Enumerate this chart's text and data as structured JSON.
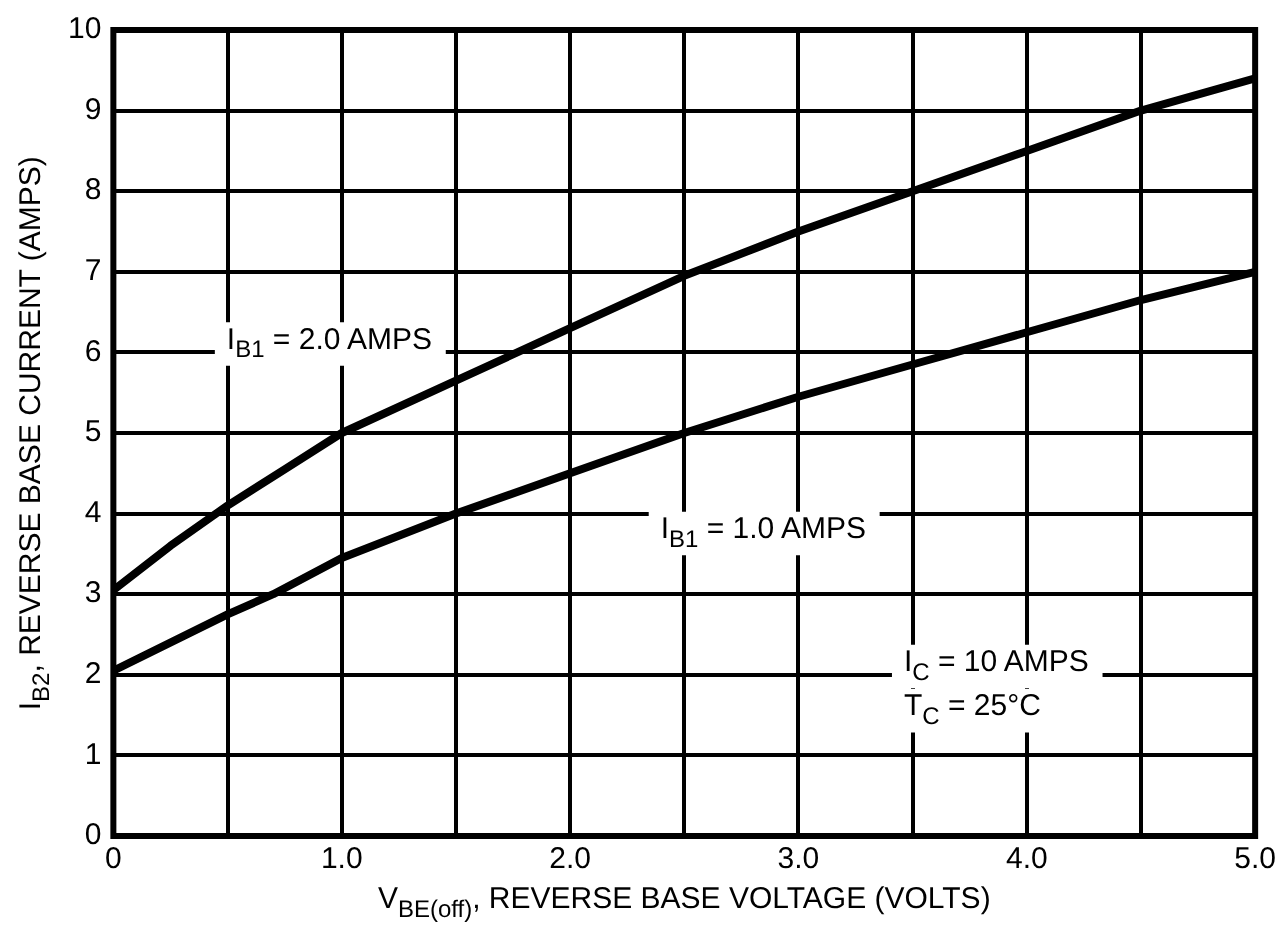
{
  "chart_data": {
    "type": "line",
    "xlabel": "V$_{BE(off)}$, REVERSE BASE VOLTAGE (VOLTS)",
    "ylabel": "I$_{B2}$, REVERSE BASE CURRENT (AMPS)",
    "series": [
      {
        "name": "I$_{B1}$ = 2.0 AMPS",
        "color": "#000000",
        "x": [
          0,
          0.25,
          0.5,
          0.75,
          1.0,
          1.5,
          2.0,
          2.5,
          3.0,
          3.5,
          4.0,
          4.5,
          5.0
        ],
        "values": [
          3.05,
          3.6,
          4.1,
          4.55,
          5.0,
          5.65,
          6.3,
          6.95,
          7.5,
          8.0,
          8.5,
          9.0,
          9.4
        ]
      },
      {
        "name": "I$_{B1}$ = 1.0 AMPS",
        "color": "#000000",
        "x": [
          0,
          0.5,
          0.7,
          1.0,
          1.5,
          2.0,
          2.5,
          3.0,
          3.5,
          4.0,
          4.5,
          5.0
        ],
        "values": [
          2.05,
          2.75,
          3.0,
          3.45,
          4.0,
          4.5,
          5.0,
          5.45,
          5.85,
          6.25,
          6.65,
          7.0
        ]
      }
    ],
    "annotations": [
      "I$_{C}$ = 10 AMPS",
      "T$_{C}$ = 25°C"
    ],
    "xlim": [
      0,
      5
    ],
    "xticks": [
      0,
      {
        "value": 0.5,
        "label": null
      },
      {
        "value": 1,
        "label": "1.0"
      },
      {
        "value": 1.5,
        "label": null
      },
      {
        "value": 2,
        "label": "2.0"
      },
      {
        "value": 2.5,
        "label": null
      },
      {
        "value": 3,
        "label": "3.0"
      },
      {
        "value": 3.5,
        "label": null
      },
      {
        "value": 4,
        "label": "4.0"
      },
      {
        "value": 4.5,
        "label": null
      },
      {
        "value": 5,
        "label": "5.0"
      }
    ],
    "ylim": [
      0,
      10
    ],
    "yticks": [
      0,
      1,
      2,
      3,
      4,
      5,
      6,
      7,
      8,
      9,
      10
    ],
    "grid": true,
    "legend": false,
    "marker": "none",
    "line_style": "solid"
  }
}
